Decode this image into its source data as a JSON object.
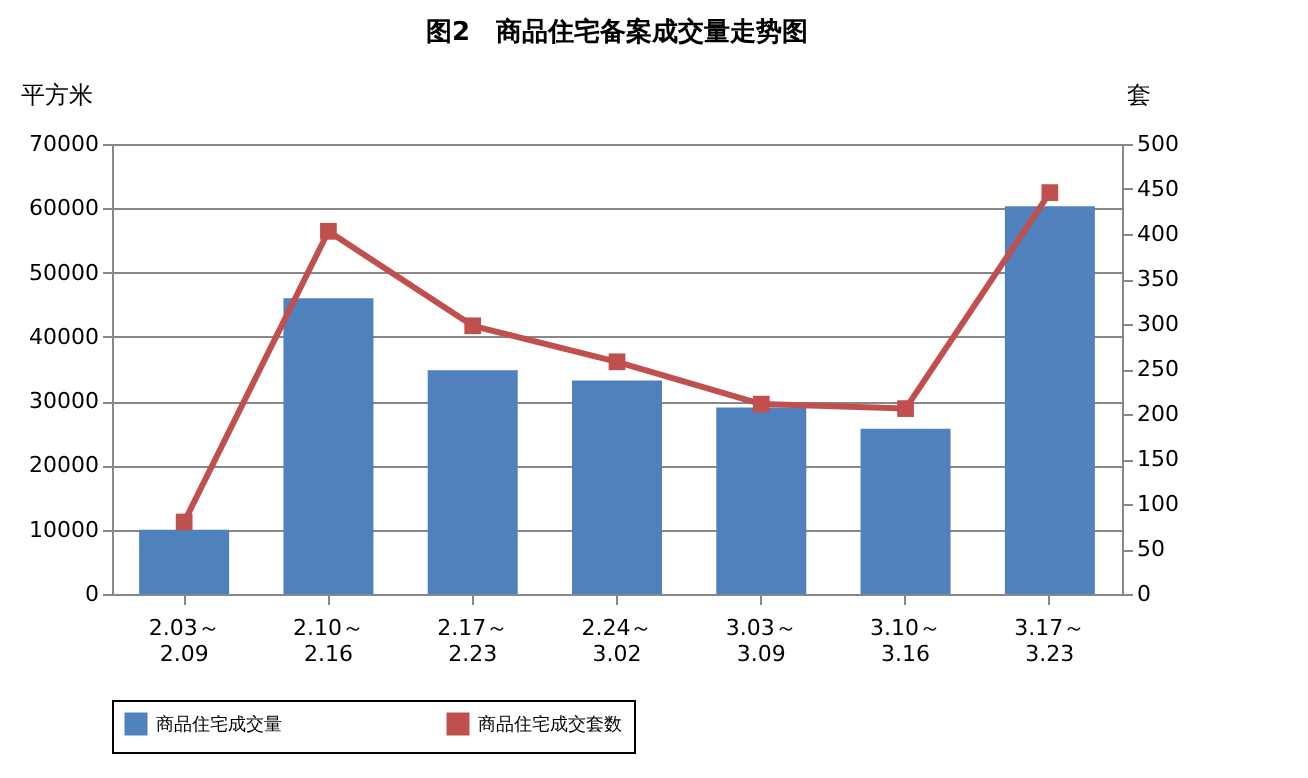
{
  "chart_data": {
    "type": "bar",
    "title": "图2　商品住宅备案成交量走势图",
    "categories": [
      "2.03～\n2.09",
      "2.10～\n2.16",
      "2.17～\n2.23",
      "2.24～\n3.02",
      "3.03～\n3.09",
      "3.10～\n3.16",
      "3.17～\n3.23"
    ],
    "ylabel": "平方米",
    "y2label": "套",
    "series": [
      {
        "name": "商品住宅成交量",
        "color": "#4f81bd",
        "values": [
          10000,
          46000,
          34800,
          33200,
          29000,
          25700,
          60300
        ]
      },
      {
        "name": "商品住宅成交套数",
        "color": "#c0504d",
        "type": "line",
        "axis": "y2",
        "marker": "square",
        "line_style": "solid",
        "values": [
          80,
          403,
          298,
          258,
          211,
          206,
          446
        ]
      }
    ],
    "ylim": [
      0,
      70000
    ],
    "yticks": [
      0,
      10000,
      20000,
      30000,
      40000,
      50000,
      60000,
      70000
    ],
    "y2lim": [
      0,
      500
    ],
    "y2ticks": [
      0,
      50,
      100,
      150,
      200,
      250,
      300,
      350,
      400,
      450,
      500
    ],
    "grid": "y",
    "legend": "bottom"
  }
}
